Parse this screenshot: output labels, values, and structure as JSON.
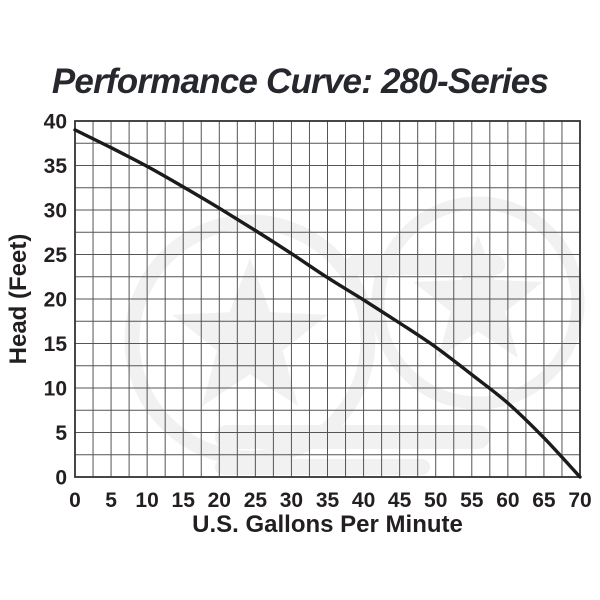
{
  "chart_data": {
    "type": "line",
    "title": "Performance Curve: 280-Series",
    "xlabel": "U.S. Gallons Per Minute",
    "ylabel": "Head (Feet)",
    "x": [
      0,
      5,
      10,
      15,
      20,
      25,
      30,
      35,
      40,
      45,
      50,
      55,
      60,
      65,
      70
    ],
    "series": [
      {
        "name": "280-Series pump performance curve",
        "values": [
          39,
          37,
          34.9,
          32.6,
          30.2,
          27.7,
          25.1,
          22.4,
          19.9,
          17.3,
          14.6,
          11.5,
          8.3,
          4.4,
          0
        ]
      }
    ],
    "xlim": [
      0,
      70
    ],
    "ylim": [
      0,
      40
    ],
    "x_ticks": [
      0,
      5,
      10,
      15,
      20,
      25,
      30,
      35,
      40,
      45,
      50,
      55,
      60,
      65,
      70
    ],
    "y_ticks": [
      0,
      5,
      10,
      15,
      20,
      25,
      30,
      35,
      40
    ],
    "minor_step_x": 2.5,
    "minor_step_y": 2.5,
    "grid": "on",
    "legend": "none",
    "watermark_icon": "star-badge-watermark",
    "colors": {
      "curve": "#1b1b1b",
      "grid": "#555555",
      "axis_box": "#333333",
      "text": "#231f20",
      "title_text": "#26282e",
      "background": "#ffffff",
      "watermark": "#000000"
    }
  }
}
